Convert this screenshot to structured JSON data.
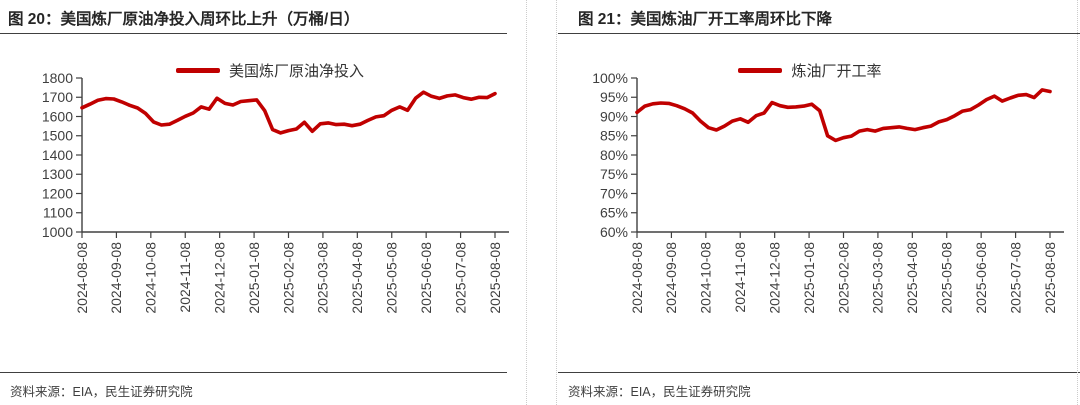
{
  "panels": [
    {
      "title": "图 20：美国炼厂原油净投入周环比上升（万桶/日）",
      "legend_label": "美国炼厂原油净投入",
      "source": "资料来源：EIA，民生证券研究院"
    },
    {
      "title": "图 21：美国炼油厂开工率周环比下降",
      "legend_label": "炼油厂开工率",
      "source": "资料来源：EIA，民生证券研究院"
    }
  ],
  "colors": {
    "line": "#C00000",
    "axis": "#404040",
    "tick_text": "#3f3f3f",
    "title_text": "#262626",
    "rule": "#404040",
    "divider": "#cccccc"
  },
  "chart_data": [
    {
      "type": "line",
      "title": "图 20：美国炼厂原油净投入周环比上升（万桶/日）",
      "unit": "万桶/日",
      "grid": false,
      "legend_position": "top",
      "legend": [
        "美国炼厂原油净投入"
      ],
      "ylim": [
        1000,
        1800
      ],
      "ytick_values": [
        1000,
        1100,
        1200,
        1300,
        1400,
        1500,
        1600,
        1700,
        1800
      ],
      "ytick_labels": [
        "1000",
        "1100",
        "1200",
        "1300",
        "1400",
        "1500",
        "1600",
        "1700",
        "1800"
      ],
      "x_tick_labels": [
        "2024-08-08",
        "2024-09-08",
        "2024-10-08",
        "2024-11-08",
        "2024-12-08",
        "2025-01-08",
        "2025-02-08",
        "2025-03-08",
        "2025-04-08",
        "2025-05-08",
        "2025-06-08",
        "2025-07-08",
        "2025-08-08"
      ],
      "x_frequency": "weekly",
      "series": [
        {
          "name": "美国炼厂原油净投入",
          "color": "#C00000",
          "values": [
            1645,
            1664,
            1684,
            1693,
            1691,
            1676,
            1658,
            1644,
            1616,
            1572,
            1556,
            1560,
            1580,
            1601,
            1618,
            1650,
            1638,
            1695,
            1668,
            1660,
            1678,
            1682,
            1686,
            1630,
            1532,
            1515,
            1527,
            1535,
            1570,
            1523,
            1562,
            1567,
            1558,
            1560,
            1552,
            1560,
            1580,
            1598,
            1604,
            1632,
            1650,
            1632,
            1695,
            1726,
            1705,
            1694,
            1707,
            1712,
            1698,
            1690,
            1700,
            1698,
            1719
          ]
        }
      ]
    },
    {
      "type": "line",
      "title": "图 21：美国炼油厂开工率周环比下降",
      "unit": "%",
      "grid": false,
      "legend_position": "top",
      "legend": [
        "炼油厂开工率"
      ],
      "ylim": [
        60,
        100
      ],
      "ytick_values": [
        60,
        65,
        70,
        75,
        80,
        85,
        90,
        95,
        100
      ],
      "ytick_labels": [
        "60%",
        "65%",
        "70%",
        "75%",
        "80%",
        "85%",
        "90%",
        "95%",
        "100%"
      ],
      "x_tick_labels": [
        "2024-08-08",
        "2024-09-08",
        "2024-10-08",
        "2024-11-08",
        "2024-12-08",
        "2025-01-08",
        "2025-02-08",
        "2025-03-08",
        "2025-04-08",
        "2025-05-08",
        "2025-06-08",
        "2025-07-08",
        "2025-08-08"
      ],
      "x_frequency": "weekly",
      "series": [
        {
          "name": "炼油厂开工率",
          "color": "#C00000",
          "values": [
            91.1,
            92.7,
            93.3,
            93.5,
            93.4,
            92.8,
            92.0,
            90.9,
            88.8,
            87.1,
            86.5,
            87.5,
            88.8,
            89.4,
            88.5,
            90.2,
            90.9,
            93.6,
            92.8,
            92.4,
            92.5,
            92.7,
            93.2,
            91.5,
            85.0,
            83.8,
            84.5,
            84.9,
            86.2,
            86.6,
            86.2,
            86.9,
            87.1,
            87.3,
            86.9,
            86.6,
            87.1,
            87.5,
            88.6,
            89.2,
            90.2,
            91.4,
            91.8,
            93.0,
            94.4,
            95.3,
            94.0,
            94.8,
            95.5,
            95.7,
            94.9,
            96.9,
            96.5
          ]
        }
      ]
    }
  ]
}
